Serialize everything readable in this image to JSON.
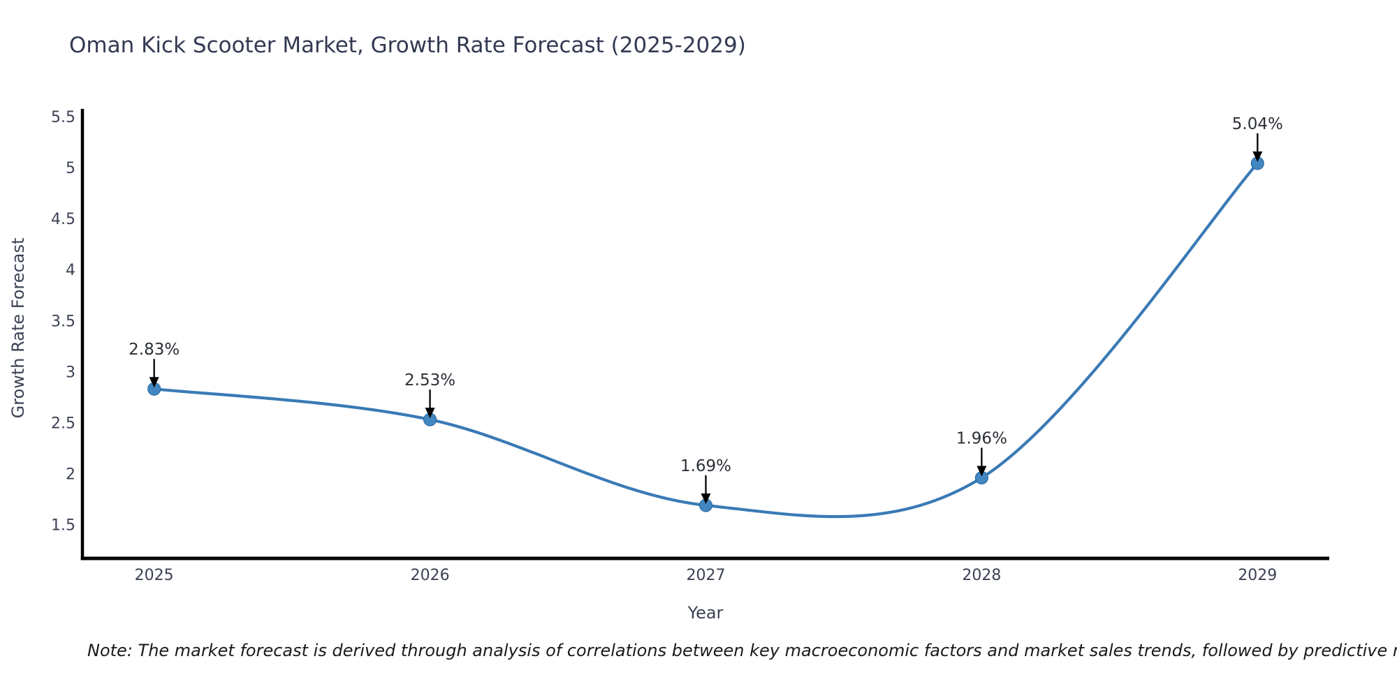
{
  "chart_data": {
    "type": "line",
    "title": "Oman Kick Scooter Market, Growth Rate Forecast (2025-2029)",
    "xlabel": "Year",
    "ylabel": "Growth Rate Forecast",
    "x": [
      2025,
      2026,
      2027,
      2028,
      2029
    ],
    "series": [
      {
        "name": "Growth Rate Forecast",
        "values": [
          2.83,
          2.53,
          1.69,
          1.96,
          5.04
        ]
      }
    ],
    "point_labels": [
      "2.83%",
      "2.53%",
      "1.69%",
      "1.96%",
      "5.04%"
    ],
    "xtick_labels": [
      "2025",
      "2026",
      "2027",
      "2028",
      "2029"
    ],
    "ytick_values": [
      1.5,
      2,
      2.5,
      3,
      3.5,
      4,
      4.5,
      5,
      5.5
    ],
    "ytick_labels": [
      "1.5",
      "2",
      "2.5",
      "3",
      "3.5",
      "4",
      "4.5",
      "5",
      "5.5"
    ],
    "xlim": [
      2024.74,
      2029.26
    ],
    "ylim": [
      1.17,
      5.56
    ],
    "grid": false,
    "legend_position": "none",
    "curve": "spline",
    "annotation_arrows": true,
    "note": "Note: The market forecast is derived through analysis of correlations between key macroeconomic factors and market sales trends, followed by predictive modeling to project future sales",
    "colors": {
      "line": "#3a7ab5",
      "marker_fill": "#4287c1",
      "marker_edge": "#2e6da6",
      "arrow": "#000000",
      "axis_line": "#000000",
      "title_text": "#333a52",
      "tick_text": "#3c4254",
      "axis_title_text": "#3c4254",
      "annotation_text": "#2b2f36",
      "note_text": "#1a1a1a",
      "background": "#ffffff"
    }
  }
}
